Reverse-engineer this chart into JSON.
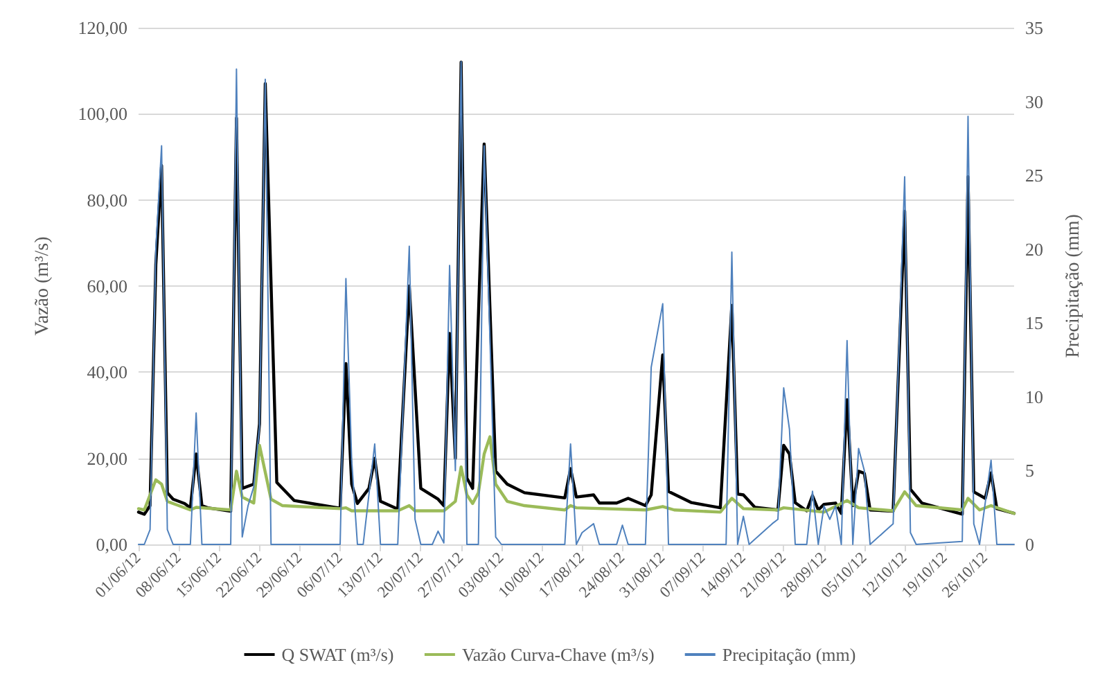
{
  "chart_data": {
    "type": "line",
    "ylabel": "Vazão (m³/s)",
    "y2label": "Precipitação (mm)",
    "xlim": [
      "--06-01",
      "--10-31"
    ],
    "xticks": [
      {
        "value": "--06-01",
        "label": "01/06/12"
      },
      {
        "value": "--06-08",
        "label": "08/06/12"
      },
      {
        "value": "--06-15",
        "label": "15/06/12"
      },
      {
        "value": "--06-22",
        "label": "22/06/12"
      },
      {
        "value": "--06-29",
        "label": "29/06/12"
      },
      {
        "value": "--07-06",
        "label": "06/07/12"
      },
      {
        "value": "--07-13",
        "label": "13/07/12"
      },
      {
        "value": "--07-20",
        "label": "20/07/12"
      },
      {
        "value": "--07-27",
        "label": "27/07/12"
      },
      {
        "value": "--08-03",
        "label": "03/08/12"
      },
      {
        "value": "--08-10",
        "label": "10/08/12"
      },
      {
        "value": "--08-17",
        "label": "17/08/12"
      },
      {
        "value": "--08-24",
        "label": "24/08/12"
      },
      {
        "value": "--08-31",
        "label": "31/08/12"
      },
      {
        "value": "--09-07",
        "label": "07/09/12"
      },
      {
        "value": "--09-14",
        "label": "14/09/12"
      },
      {
        "value": "--09-21",
        "label": "21/09/12"
      },
      {
        "value": "--09-28",
        "label": "28/09/12"
      },
      {
        "value": "--10-05",
        "label": "05/10/12"
      },
      {
        "value": "--10-12",
        "label": "12/10/12"
      },
      {
        "value": "--10-19",
        "label": "19/10/12"
      },
      {
        "value": "--10-26",
        "label": "26/10/12"
      }
    ],
    "ylim": [
      0,
      120
    ],
    "yticks": [
      {
        "value": 0,
        "label": "0,00"
      },
      {
        "value": 20,
        "label": "20,00"
      },
      {
        "value": 40,
        "label": "40,00"
      },
      {
        "value": 60,
        "label": "60,00"
      },
      {
        "value": 80,
        "label": "80,00"
      },
      {
        "value": 100,
        "label": "100,00"
      },
      {
        "value": 120,
        "label": "120,00"
      }
    ],
    "y2lim": [
      0,
      35
    ],
    "y2ticks": [
      0,
      5,
      10,
      15,
      20,
      25,
      30,
      35
    ],
    "grid": "y",
    "legend": "bottom",
    "marker": "none",
    "line_style": "solid",
    "series": [
      {
        "name": "Q SWAT (m³/s)",
        "color": "#000000",
        "x": [
          "--06-01",
          "--06-02",
          "--06-03",
          "--06-04",
          "--06-05",
          "--06-06",
          "--06-07",
          "--06-09",
          "--06-10",
          "--06-11",
          "--06-12",
          "--06-13",
          "--06-17",
          "--06-18",
          "--06-19",
          "--06-21",
          "--06-22",
          "--06-23",
          "--06-25",
          "--06-28",
          "--07-05",
          "--07-06",
          "--07-07",
          "--07-08",
          "--07-09",
          "--07-11",
          "--07-12",
          "--07-13",
          "--07-16",
          "--07-18",
          "--07-20",
          "--07-23",
          "--07-24",
          "--07-25",
          "--07-26",
          "--07-27",
          "--07-28",
          "--07-29",
          "--07-31",
          "--08-01",
          "--08-02",
          "--08-04",
          "--08-07",
          "--08-14",
          "--08-15",
          "--08-16",
          "--08-19",
          "--08-20",
          "--08-23",
          "--08-25",
          "--08-28",
          "--08-29",
          "--08-31",
          "--09-01",
          "--09-05",
          "--09-10",
          "--09-12",
          "--09-13",
          "--09-14",
          "--09-16",
          "--09-20",
          "--09-21",
          "--09-22",
          "--09-23",
          "--09-25",
          "--09-26",
          "--09-27",
          "--09-28",
          "--09-30",
          "--10-01",
          "--10-02",
          "--10-03",
          "--10-04",
          "--10-05",
          "--10-06",
          "--10-10",
          "--10-12",
          "--10-13",
          "--10-15",
          "--10-22",
          "--10-23",
          "--10-24",
          "--10-26",
          "--10-27",
          "--10-28",
          "--10-31"
        ],
        "values": [
          7.5,
          7,
          9,
          65,
          88,
          12,
          10.5,
          9.5,
          8.5,
          21,
          9,
          8.5,
          7.7,
          99,
          13,
          14,
          28,
          107,
          14.4,
          10.2,
          8.6,
          8.4,
          42,
          14,
          9.5,
          13,
          20,
          10,
          8.2,
          60,
          13,
          10.5,
          9,
          49,
          20,
          112,
          15.4,
          13,
          93,
          55,
          17,
          14,
          12,
          10.8,
          17.6,
          11,
          11.5,
          9.6,
          9.6,
          10.7,
          9,
          11.5,
          44,
          12.3,
          9.7,
          8.5,
          55.5,
          11.7,
          11.5,
          8.6,
          8,
          23,
          21,
          9.7,
          7.8,
          11.3,
          8,
          9.3,
          9.6,
          7.2,
          33.6,
          9,
          17,
          16.5,
          8,
          7.7,
          77.4,
          12.8,
          9.6,
          7,
          85.4,
          12.2,
          10.7,
          16.6,
          8.3,
          7.2
        ]
      },
      {
        "name": "Vazão Curva-Chave (m³/s)",
        "color": "#9bbb59",
        "x": [
          "--06-01",
          "--06-02",
          "--06-04",
          "--06-05",
          "--06-06",
          "--06-10",
          "--06-11",
          "--06-17",
          "--06-18",
          "--06-19",
          "--06-21",
          "--06-22",
          "--06-24",
          "--06-26",
          "--07-06",
          "--07-07",
          "--07-08",
          "--07-16",
          "--07-18",
          "--07-19",
          "--07-24",
          "--07-26",
          "--07-27",
          "--07-28",
          "--07-29",
          "--07-30",
          "--07-31",
          "--08-01",
          "--08-02",
          "--08-04",
          "--08-07",
          "--08-14",
          "--08-15",
          "--08-16",
          "--08-28",
          "--08-31",
          "--09-02",
          "--09-10",
          "--09-12",
          "--09-14",
          "--09-20",
          "--09-21",
          "--09-28",
          "--10-02",
          "--10-04",
          "--10-10",
          "--10-12",
          "--10-14",
          "--10-22",
          "--10-23",
          "--10-25",
          "--10-27",
          "--10-31"
        ],
        "values": [
          8.3,
          8,
          15,
          14,
          10,
          8,
          8.6,
          8,
          17,
          11,
          9.6,
          23,
          10.5,
          9,
          8.3,
          8.5,
          7.8,
          7.8,
          9,
          7.8,
          7.8,
          10,
          18,
          11.5,
          9.5,
          12,
          21,
          25,
          14,
          10,
          9,
          8,
          9,
          8.5,
          8,
          8.8,
          8,
          7.5,
          10.7,
          8.3,
          8,
          8.5,
          7.5,
          10.2,
          8.5,
          7.8,
          12.2,
          9,
          8,
          10.7,
          8,
          9,
          7.2
        ]
      },
      {
        "name": "Precipitação (mm)",
        "color": "#4f81bd",
        "axis": "y2",
        "x": [
          "--06-01",
          "--06-02",
          "--06-03",
          "--06-04",
          "--06-05",
          "--06-06",
          "--06-07",
          "--06-10",
          "--06-11",
          "--06-12",
          "--06-17",
          "--06-18",
          "--06-19",
          "--06-20",
          "--06-21",
          "--06-22",
          "--06-23",
          "--06-24",
          "--07-06",
          "--07-07",
          "--07-08",
          "--07-09",
          "--07-10",
          "--07-12",
          "--07-13",
          "--07-16",
          "--07-18",
          "--07-19",
          "--07-20",
          "--07-22",
          "--07-23",
          "--07-24",
          "--07-25",
          "--07-26",
          "--07-27",
          "--07-28",
          "--07-30",
          "--07-31",
          "--08-01",
          "--08-02",
          "--08-03",
          "--08-14",
          "--08-15",
          "--08-16",
          "--08-17",
          "--08-18",
          "--08-19",
          "--08-20",
          "--08-23",
          "--08-24",
          "--08-25",
          "--08-28",
          "--08-29",
          "--08-31",
          "--09-01",
          "--09-11",
          "--09-12",
          "--09-13",
          "--09-14",
          "--09-15",
          "--09-19",
          "--09-20",
          "--09-21",
          "--09-22",
          "--09-23",
          "--09-25",
          "--09-26",
          "--09-27",
          "--09-28",
          "--09-29",
          "--09-30",
          "--10-01",
          "--10-02",
          "--10-03",
          "--10-04",
          "--10-05",
          "--10-06",
          "--10-10",
          "--10-12",
          "--10-13",
          "--10-14",
          "--10-22",
          "--10-23",
          "--10-24",
          "--10-25",
          "--10-27",
          "--10-28",
          "--10-31"
        ],
        "values": [
          0,
          0,
          1,
          20,
          27,
          1,
          0,
          0,
          8.9,
          0,
          0,
          32.2,
          0.5,
          2.6,
          3.9,
          8,
          31.5,
          0,
          0,
          18,
          5.7,
          0,
          0,
          6.8,
          0,
          0,
          20.2,
          1.7,
          0,
          0,
          0.9,
          0.1,
          18.9,
          5,
          32.7,
          0,
          0,
          27,
          14,
          0.5,
          0,
          0,
          6.8,
          0,
          0.8,
          1.1,
          1.4,
          0,
          0,
          1.3,
          0,
          0,
          12,
          16.3,
          0,
          0,
          19.8,
          0,
          1.9,
          0,
          1.4,
          1.7,
          10.6,
          7.8,
          0,
          0,
          3.6,
          0,
          2.6,
          1.7,
          2.6,
          0,
          13.8,
          0,
          6.5,
          5,
          0,
          1.4,
          24.9,
          0.8,
          0,
          0.2,
          29,
          1.4,
          0,
          5.7,
          0,
          0
        ]
      }
    ]
  }
}
